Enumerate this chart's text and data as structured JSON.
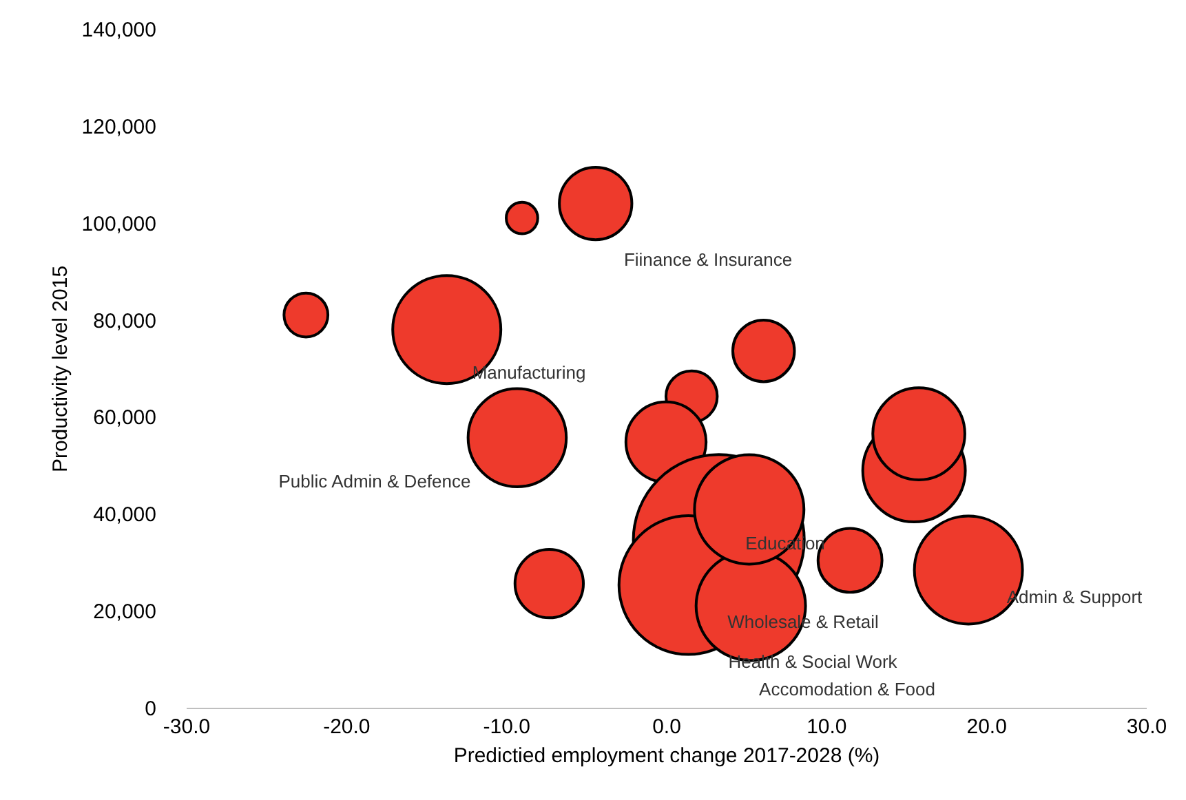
{
  "chart_data": {
    "type": "bubble",
    "xlabel": "Predictied employment  change 2017-2028 (%)",
    "ylabel": "Productivity level 2015",
    "x": [
      -22.5,
      -9.0,
      -4.4,
      -13.7,
      -9.3,
      -7.3,
      6.1,
      1.6,
      0.0,
      3.3,
      1.4,
      5.3,
      5.2,
      11.5,
      15.5,
      15.8,
      18.9
    ],
    "values": [
      81000,
      101000,
      104000,
      78000,
      55700,
      25600,
      73600,
      64200,
      54800,
      34600,
      25300,
      21000,
      40900,
      30400,
      48900,
      56500,
      28400
    ],
    "sizes": [
      0.066,
      0.034,
      0.18,
      0.4,
      0.33,
      0.16,
      0.13,
      0.09,
      0.22,
      1,
      0.66,
      0.41,
      0.41,
      0.14,
      0.36,
      0.29,
      0.4
    ],
    "color": "#ee3a2c",
    "xlim": [
      -30,
      30
    ],
    "xticks": [
      {
        "value": -30,
        "label": "-30.0"
      },
      {
        "value": -20,
        "label": "-20.0"
      },
      {
        "value": -10,
        "label": "-10.0"
      },
      {
        "value": 0,
        "label": "0.0"
      },
      {
        "value": 10,
        "label": "10.0"
      },
      {
        "value": 20,
        "label": "20.0"
      },
      {
        "value": 30,
        "label": "30.0"
      }
    ],
    "ylim": [
      0,
      140000
    ],
    "yticks": [
      0,
      {
        "value": 20000,
        "label": "20,000"
      },
      {
        "value": 40000,
        "label": "40,000"
      },
      {
        "value": 60000,
        "label": "60,000"
      },
      {
        "value": 80000,
        "label": "80,000"
      },
      {
        "value": 100000,
        "label": "100,000"
      },
      {
        "value": 120000,
        "label": "120,000"
      },
      {
        "value": 140000,
        "label": "140,000"
      }
    ],
    "annotations": [
      "Fiinance & Insurance",
      "Manufacturing",
      "Public Admin & Defence",
      "Education",
      "Wholesale & Retail",
      "Health & Social Work",
      "Accomodation & Food",
      "Admin & Support"
    ]
  }
}
